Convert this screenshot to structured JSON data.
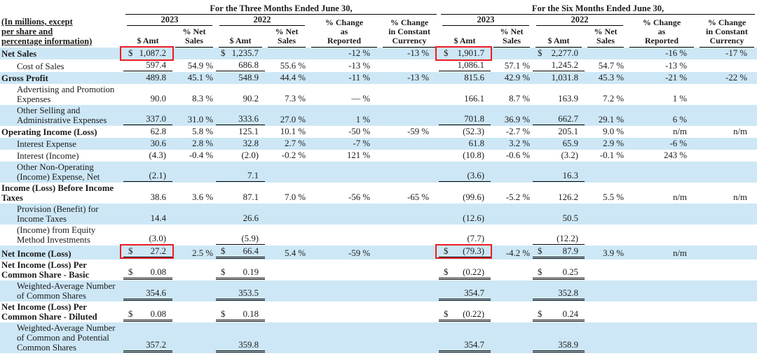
{
  "colors": {
    "stripe": "#cde7f6",
    "highlight_box": "#ed1c24",
    "text": "#1b1b1b"
  },
  "table": {
    "row_header": "(In millions, except\nper share and\npercentage information)",
    "groups": {
      "three_months_title": "For the Three Months Ended June 30,",
      "six_months_title": "For the Six Months Ended June 30,"
    },
    "col_headers": {
      "year_2023": "2023",
      "year_2022": "2022",
      "amt": "$ Amt",
      "pct_net_sales": "% Net\nSales",
      "chg_reported": "% Change\nas\nReported",
      "chg_constant_currency": "% Change\nin Constant\nCurrency"
    },
    "rows": [
      {
        "label": "Net Sales",
        "bold": true,
        "stripe": true,
        "rule": "none",
        "redbox": [
          0,
          6
        ],
        "cells": [
          "$ 1,087.2",
          "",
          "$ 1,235.7",
          "",
          "-12 %",
          "-13 %",
          "$ 1,901.7",
          "",
          "$ 2,277.0",
          "",
          "-16 %",
          "-17 %"
        ]
      },
      {
        "label": "Cost of Sales",
        "bold": false,
        "stripe": false,
        "rule": "single",
        "cells": [
          "597.4",
          "54.9 %",
          "686.8",
          "55.6 %",
          "-13 %",
          "",
          "1,086.1",
          "57.1 %",
          "1,245.2",
          "54.7 %",
          "-13 %",
          ""
        ]
      },
      {
        "label": "Gross Profit",
        "bold": true,
        "stripe": true,
        "rule": "none",
        "cells": [
          "489.8",
          "45.1 %",
          "548.9",
          "44.4 %",
          "-11 %",
          "-13 %",
          "815.6",
          "42.9 %",
          "1,031.8",
          "45.3 %",
          "-21 %",
          "-22 %"
        ]
      },
      {
        "label": "Advertising and Promotion Expenses",
        "bold": false,
        "stripe": false,
        "rule": "none",
        "cells": [
          "90.0",
          "8.3 %",
          "90.2",
          "7.3 %",
          "— %",
          "",
          "166.1",
          "8.7 %",
          "163.9",
          "7.2 %",
          "1 %",
          ""
        ]
      },
      {
        "label": "Other Selling and Administrative Expenses",
        "bold": false,
        "stripe": true,
        "rule": "single",
        "cells": [
          "337.0",
          "31.0 %",
          "333.6",
          "27.0 %",
          "1 %",
          "",
          "701.8",
          "36.9 %",
          "662.7",
          "29.1 %",
          "6 %",
          ""
        ]
      },
      {
        "label": "Operating Income (Loss)",
        "bold": true,
        "stripe": false,
        "rule": "none",
        "cells": [
          "62.8",
          "5.8 %",
          "125.1",
          "10.1 %",
          "-50 %",
          "-59 %",
          "(52.3)",
          "-2.7 %",
          "205.1",
          "9.0 %",
          "n/m",
          "n/m"
        ]
      },
      {
        "label": "Interest Expense",
        "bold": false,
        "stripe": true,
        "rule": "none",
        "cells": [
          "30.6",
          "2.8 %",
          "32.8",
          "2.7 %",
          "-7 %",
          "",
          "61.8",
          "3.2 %",
          "65.9",
          "2.9 %",
          "-6 %",
          ""
        ]
      },
      {
        "label": "Interest (Income)",
        "bold": false,
        "stripe": false,
        "rule": "none",
        "cells": [
          "(4.3)",
          "-0.4 %",
          "(2.0)",
          "-0.2 %",
          "121 %",
          "",
          "(10.8)",
          "-0.6 %",
          "(3.2)",
          "-0.1 %",
          "243 %",
          ""
        ]
      },
      {
        "label": "Other Non-Operating (Income) Expense, Net",
        "bold": false,
        "stripe": true,
        "rule": "single",
        "cells": [
          "(2.1)",
          "",
          "7.1",
          "",
          "",
          "",
          "(3.6)",
          "",
          "16.3",
          "",
          "",
          ""
        ]
      },
      {
        "label": "Income (Loss) Before Income Taxes",
        "bold": true,
        "stripe": false,
        "rule": "none",
        "cells": [
          "38.6",
          "3.6 %",
          "87.1",
          "7.0 %",
          "-56 %",
          "-65 %",
          "(99.6)",
          "-5.2 %",
          "126.2",
          "5.5 %",
          "n/m",
          "n/m"
        ]
      },
      {
        "label": "Provision (Benefit) for Income Taxes",
        "bold": false,
        "stripe": true,
        "rule": "none",
        "cells": [
          "14.4",
          "",
          "26.6",
          "",
          "",
          "",
          "(12.6)",
          "",
          "50.5",
          "",
          "",
          ""
        ]
      },
      {
        "label": "(Income) from Equity Method Investments",
        "bold": false,
        "stripe": false,
        "rule": "single",
        "cells": [
          "(3.0)",
          "",
          "(5.9)",
          "",
          "",
          "",
          "(7.7)",
          "",
          "(12.2)",
          "",
          "",
          ""
        ]
      },
      {
        "label": "Net Income (Loss)",
        "bold": true,
        "stripe": true,
        "rule": "double",
        "redbox": [
          0,
          6
        ],
        "cells": [
          "$ 27.2",
          "2.5 %",
          "$ 66.4",
          "5.4 %",
          "-59 %",
          "",
          "$ (79.3)",
          "-4.2 %",
          "$ 87.9",
          "3.9 %",
          "n/m",
          ""
        ]
      },
      {
        "label": "Net Income (Loss) Per Common Share - Basic",
        "bold": true,
        "stripe": false,
        "rule": "double",
        "cells": [
          "$ 0.08",
          "",
          "$ 0.19",
          "",
          "",
          "",
          "$ (0.22)",
          "",
          "$ 0.25",
          "",
          "",
          ""
        ]
      },
      {
        "label": "Weighted-Average Number of Common Shares",
        "bold": false,
        "stripe": true,
        "rule": "double",
        "cells": [
          "354.6",
          "",
          "353.5",
          "",
          "",
          "",
          "354.7",
          "",
          "352.8",
          "",
          "",
          ""
        ]
      },
      {
        "label": "Net Income (Loss) Per Common Share - Diluted",
        "bold": true,
        "stripe": false,
        "rule": "double",
        "cells": [
          "$ 0.08",
          "",
          "$ 0.18",
          "",
          "",
          "",
          "$ (0.22)",
          "",
          "$ 0.24",
          "",
          "",
          ""
        ]
      },
      {
        "label": "Weighted-Average Number of Common and Potential Common Shares",
        "bold": false,
        "stripe": true,
        "rule": "double",
        "cells": [
          "357.2",
          "",
          "359.8",
          "",
          "",
          "",
          "354.7",
          "",
          "358.9",
          "",
          "",
          ""
        ]
      }
    ]
  }
}
